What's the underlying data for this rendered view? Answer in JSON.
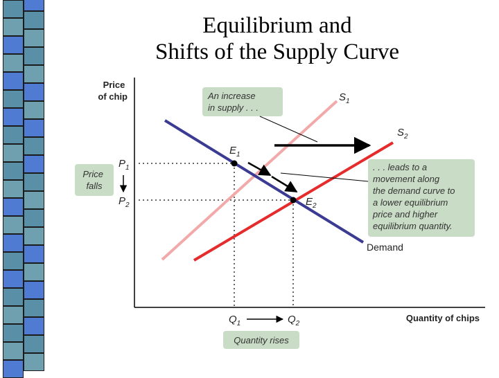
{
  "title": {
    "line1": "Equilibrium and",
    "line2": "Shifts of the Supply Curve"
  },
  "axes": {
    "y_label_line1": "Price",
    "y_label_line2": "of chip",
    "x_label": "Quantity of chips"
  },
  "curves": {
    "s1": {
      "letter": "S",
      "sub": "1",
      "color": "#f2a9a9"
    },
    "s2": {
      "letter": "S",
      "sub": "2",
      "color": "#e52b2b"
    },
    "demand": {
      "label": "Demand",
      "color": "#3b3b93"
    }
  },
  "points": {
    "e1": {
      "letter": "E",
      "sub": "1"
    },
    "e2": {
      "letter": "E",
      "sub": "2"
    }
  },
  "ticks": {
    "p1": {
      "letter": "P",
      "sub": "1"
    },
    "p2": {
      "letter": "P",
      "sub": "2"
    },
    "q1": {
      "letter": "Q",
      "sub": "1"
    },
    "q2": {
      "letter": "Q",
      "sub": "2"
    }
  },
  "callouts": {
    "increase": [
      "An increase",
      "in supply . . ."
    ],
    "leads": [
      ". . . leads to a",
      "movement along",
      "the demand curve to",
      "a lower equilibrium",
      "price and higher",
      "equilibrium quantity."
    ],
    "price_falls": [
      "Price",
      "falls"
    ],
    "quantity_rises": "Quantity rises",
    "box_color": "#c9dcc6"
  },
  "colors": {
    "stripe": [
      "#5a8fa8",
      "#b6dff2",
      "#1c3f7d",
      "#4f7bd3",
      "#0e1e55",
      "#e6e7c8",
      "#6fa0b0",
      "#0b1430",
      "#c3e7f7"
    ]
  }
}
